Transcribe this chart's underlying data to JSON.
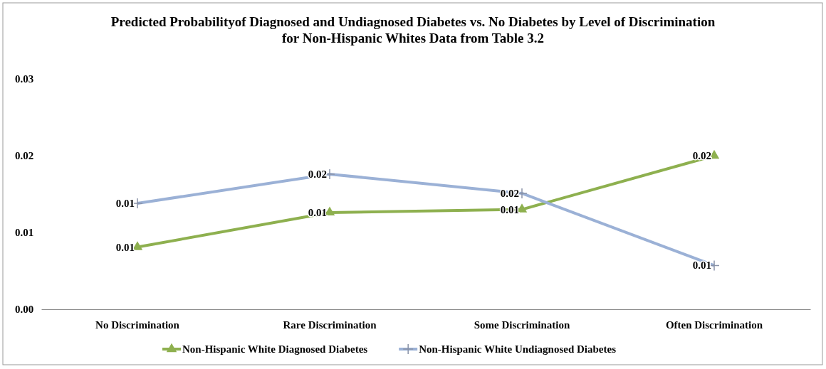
{
  "chart_data": {
    "type": "line",
    "title": "Predicted Probabilityof Diagnosed and Undiagnosed Diabetes vs. No Diabetes by Level of Discrimination for Non-Hispanic Whites Data from Table 3.2",
    "categories": [
      "No Discrimination",
      "Rare Discrimination",
      "Some Discrimination",
      "Often Discrimination"
    ],
    "series": [
      {
        "name": "Non-Hispanic White Diagnosed Diabetes",
        "color": "#8eb04f",
        "marker": "triangle",
        "values": [
          0.0081,
          0.0126,
          0.013,
          0.02
        ],
        "value_labels": [
          "0.01",
          "0.01",
          "0.01",
          "0.02"
        ]
      },
      {
        "name": "Non-Hispanic White Undiagnosed Diabetes",
        "color": "#9bb1d6",
        "marker": "cross",
        "values": [
          0.0138,
          0.0176,
          0.0151,
          0.0057
        ],
        "value_labels": [
          "0.01",
          "0.02",
          "0.02",
          "0.01"
        ]
      }
    ],
    "ylim": [
      0,
      0.03
    ],
    "yticks": [
      {
        "value": 0,
        "label": "0.00"
      },
      0.01,
      0.02,
      0.03
    ],
    "grid": false,
    "legend": "bottom"
  }
}
